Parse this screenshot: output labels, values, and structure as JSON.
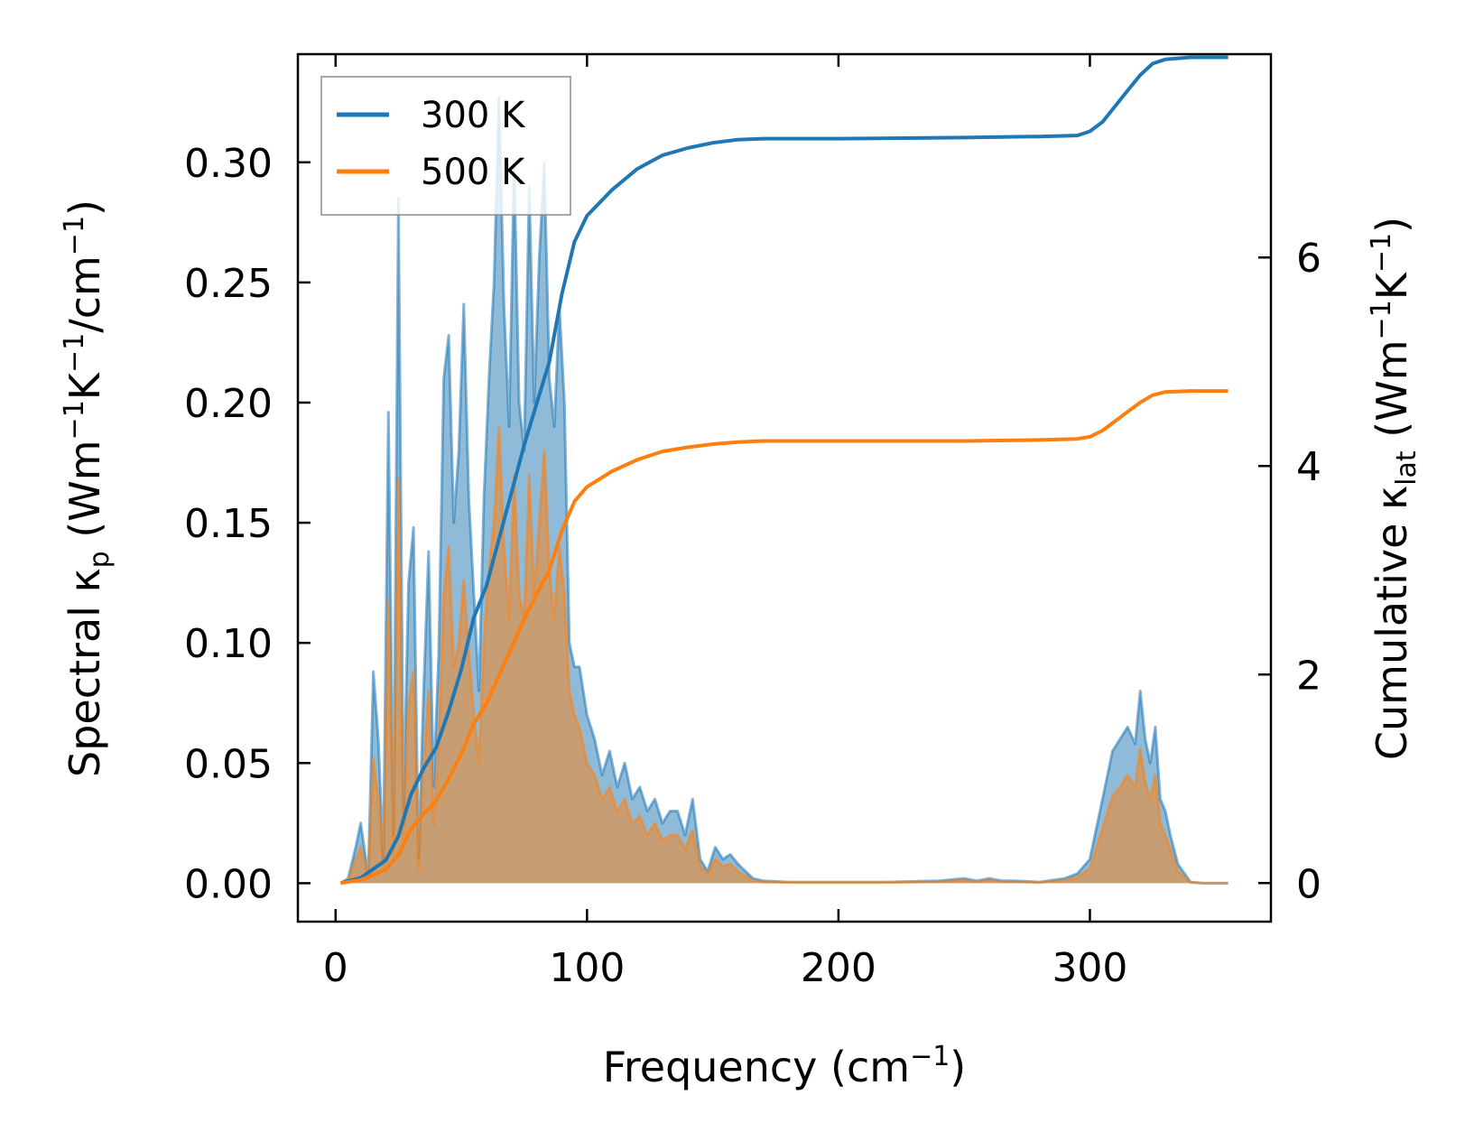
{
  "chart_data": {
    "type": "line",
    "xlabel": "Frequency (cm",
    "xlabel_sup": "−1",
    "xlabel_end": ")",
    "ylabel_left": {
      "prefix": "Spectral κ",
      "sub": "p",
      "mid1": " (Wm",
      "sup1": "−1",
      "mid2": "K",
      "sup2": "−1",
      "mid3": "/cm",
      "sup3": "−1",
      "end": ")"
    },
    "ylabel_right": {
      "prefix": "Cumulative κ",
      "sub": "lat",
      "mid1": " (Wm",
      "sup1": "−1",
      "mid2": "K",
      "sup2": "−1",
      "end": ")"
    },
    "xlim": [
      -15,
      372
    ],
    "ylim_left": [
      -0.016,
      0.345
    ],
    "ylim_right": [
      -0.37,
      7.95
    ],
    "x_ticks": [
      0,
      100,
      200,
      300
    ],
    "x_tick_labels": [
      "0",
      "100",
      "200",
      "300"
    ],
    "y_left_ticks": [
      0.0,
      0.05,
      0.1,
      0.15,
      0.2,
      0.25,
      0.3
    ],
    "y_left_tick_labels": [
      "0.00",
      "0.05",
      "0.10",
      "0.15",
      "0.20",
      "0.25",
      "0.30"
    ],
    "y_right_ticks": [
      0,
      2,
      4,
      6
    ],
    "y_right_tick_labels": [
      "0",
      "2",
      "4",
      "6"
    ],
    "legend": {
      "position": "top-left",
      "entries": [
        "300 K",
        "500 K"
      ]
    },
    "colors": {
      "300 K": "#1f77b4",
      "500 K": "#ff7f0e"
    },
    "series": [
      {
        "name": "300 K",
        "kind": "spectral",
        "axis": "left",
        "x": [
          2,
          5,
          8,
          10,
          13,
          15,
          17,
          19,
          21,
          23,
          25,
          27,
          29,
          31,
          33,
          35,
          37,
          39,
          41,
          43,
          45,
          47,
          49,
          51,
          53,
          55,
          57,
          59,
          61,
          63,
          65,
          67,
          69,
          71,
          73,
          75,
          77,
          79,
          81,
          83,
          85,
          87,
          89,
          91,
          93,
          95,
          97,
          100,
          103,
          106,
          109,
          112,
          115,
          118,
          121,
          124,
          127,
          130,
          133,
          136,
          139,
          142,
          145,
          148,
          151,
          154,
          157,
          160,
          163,
          166,
          170,
          180,
          200,
          220,
          240,
          250,
          255,
          260,
          265,
          270,
          280,
          290,
          295,
          300,
          303,
          306,
          309,
          312,
          315,
          318,
          320,
          322,
          324,
          326,
          328,
          330,
          332,
          335,
          340,
          345,
          355
        ],
        "y": [
          0,
          0.002,
          0.015,
          0.025,
          0.003,
          0.088,
          0.06,
          0.01,
          0.196,
          0.02,
          0.285,
          0.03,
          0.125,
          0.148,
          0.01,
          0.08,
          0.138,
          0.04,
          0.095,
          0.21,
          0.228,
          0.15,
          0.18,
          0.241,
          0.16,
          0.12,
          0.08,
          0.16,
          0.21,
          0.25,
          0.327,
          0.24,
          0.19,
          0.3,
          0.2,
          0.18,
          0.29,
          0.2,
          0.26,
          0.3,
          0.21,
          0.19,
          0.24,
          0.2,
          0.1,
          0.09,
          0.09,
          0.07,
          0.06,
          0.045,
          0.055,
          0.04,
          0.05,
          0.035,
          0.04,
          0.03,
          0.035,
          0.025,
          0.03,
          0.03,
          0.02,
          0.035,
          0.01,
          0.005,
          0.015,
          0.01,
          0.012,
          0.008,
          0.005,
          0.002,
          0.001,
          0.0005,
          0.0005,
          0.0005,
          0.001,
          0.002,
          0.001,
          0.002,
          0.001,
          0.001,
          0.0005,
          0.002,
          0.004,
          0.01,
          0.025,
          0.04,
          0.055,
          0.06,
          0.065,
          0.058,
          0.08,
          0.06,
          0.05,
          0.065,
          0.035,
          0.03,
          0.02,
          0.008,
          0.0005,
          0,
          0
        ]
      },
      {
        "name": "500 K",
        "kind": "spectral",
        "axis": "left",
        "x": [
          2,
          5,
          8,
          10,
          13,
          15,
          17,
          19,
          21,
          23,
          25,
          27,
          29,
          31,
          33,
          35,
          37,
          39,
          41,
          43,
          45,
          47,
          49,
          51,
          53,
          55,
          57,
          59,
          61,
          63,
          65,
          67,
          69,
          71,
          73,
          75,
          77,
          79,
          81,
          83,
          85,
          87,
          89,
          91,
          93,
          95,
          97,
          100,
          103,
          106,
          109,
          112,
          115,
          118,
          121,
          124,
          127,
          130,
          133,
          136,
          139,
          142,
          145,
          148,
          151,
          154,
          157,
          160,
          163,
          166,
          170,
          180,
          200,
          220,
          240,
          250,
          255,
          260,
          265,
          270,
          280,
          290,
          295,
          300,
          303,
          306,
          309,
          312,
          315,
          318,
          320,
          322,
          324,
          326,
          328,
          330,
          332,
          335,
          340,
          345,
          355
        ],
        "y": [
          0,
          0.001,
          0.01,
          0.015,
          0.002,
          0.052,
          0.035,
          0.006,
          0.118,
          0.012,
          0.168,
          0.018,
          0.075,
          0.088,
          0.006,
          0.048,
          0.08,
          0.024,
          0.058,
          0.12,
          0.14,
          0.09,
          0.1,
          0.126,
          0.095,
          0.07,
          0.05,
          0.1,
          0.13,
          0.15,
          0.19,
          0.14,
          0.11,
          0.17,
          0.12,
          0.11,
          0.17,
          0.12,
          0.15,
          0.18,
          0.13,
          0.11,
          0.14,
          0.12,
          0.08,
          0.07,
          0.065,
          0.05,
          0.045,
          0.035,
          0.04,
          0.03,
          0.035,
          0.025,
          0.028,
          0.02,
          0.025,
          0.018,
          0.02,
          0.02,
          0.014,
          0.022,
          0.007,
          0.004,
          0.01,
          0.007,
          0.008,
          0.005,
          0.003,
          0.001,
          0.0005,
          0.0003,
          0.0003,
          0.0003,
          0.0006,
          0.0012,
          0.0006,
          0.0012,
          0.0006,
          0.0006,
          0.0003,
          0.0012,
          0.0025,
          0.006,
          0.016,
          0.026,
          0.036,
          0.04,
          0.045,
          0.04,
          0.056,
          0.042,
          0.035,
          0.045,
          0.025,
          0.02,
          0.014,
          0.005,
          0.0003,
          0,
          0
        ]
      },
      {
        "name": "300 K",
        "kind": "cumulative",
        "axis": "right",
        "x": [
          2,
          10,
          20,
          25,
          30,
          35,
          40,
          45,
          50,
          55,
          60,
          65,
          70,
          75,
          80,
          85,
          90,
          95,
          100,
          110,
          120,
          130,
          140,
          150,
          160,
          170,
          200,
          250,
          280,
          295,
          300,
          305,
          310,
          315,
          320,
          325,
          330,
          340,
          355
        ],
        "y": [
          0,
          0.05,
          0.22,
          0.45,
          0.85,
          1.1,
          1.3,
          1.65,
          2.05,
          2.55,
          2.85,
          3.3,
          3.75,
          4.2,
          4.6,
          5.0,
          5.65,
          6.15,
          6.4,
          6.65,
          6.85,
          6.98,
          7.05,
          7.1,
          7.13,
          7.14,
          7.14,
          7.15,
          7.16,
          7.17,
          7.21,
          7.3,
          7.45,
          7.6,
          7.75,
          7.86,
          7.9,
          7.92,
          7.92
        ]
      },
      {
        "name": "500 K",
        "kind": "cumulative",
        "axis": "right",
        "x": [
          2,
          10,
          20,
          25,
          30,
          35,
          40,
          45,
          50,
          55,
          60,
          65,
          70,
          75,
          80,
          85,
          90,
          95,
          100,
          110,
          120,
          130,
          140,
          150,
          160,
          170,
          200,
          250,
          280,
          295,
          300,
          305,
          310,
          315,
          320,
          325,
          330,
          340,
          355
        ],
        "y": [
          0,
          0.03,
          0.13,
          0.27,
          0.52,
          0.66,
          0.79,
          1.0,
          1.24,
          1.53,
          1.72,
          1.99,
          2.26,
          2.53,
          2.77,
          3.0,
          3.38,
          3.66,
          3.8,
          3.95,
          4.06,
          4.14,
          4.18,
          4.21,
          4.23,
          4.24,
          4.24,
          4.24,
          4.25,
          4.26,
          4.28,
          4.34,
          4.43,
          4.52,
          4.61,
          4.68,
          4.71,
          4.72,
          4.72
        ]
      }
    ]
  }
}
